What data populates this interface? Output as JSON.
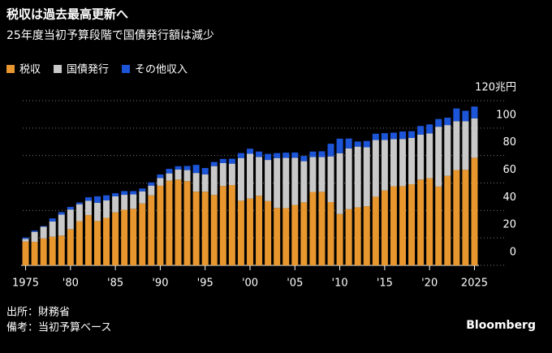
{
  "chart_data": {
    "type": "stacked-bar",
    "title": "税収は過去最高更新へ",
    "subtitle": "25年度当初予算段階で国債発行額は減少",
    "x": [
      1975,
      1976,
      1977,
      1978,
      1979,
      1980,
      1981,
      1982,
      1983,
      1984,
      1985,
      1986,
      1987,
      1988,
      1989,
      1990,
      1991,
      1992,
      1993,
      1994,
      1995,
      1996,
      1997,
      1998,
      1999,
      2000,
      2001,
      2002,
      2003,
      2004,
      2005,
      2006,
      2007,
      2008,
      2009,
      2010,
      2011,
      2012,
      2013,
      2014,
      2015,
      2016,
      2017,
      2018,
      2019,
      2020,
      2021,
      2022,
      2023,
      2024,
      2025
    ],
    "series": [
      {
        "name": "税収",
        "color": "#e8972f",
        "values": [
          17.3,
          17.1,
          19.6,
          20.9,
          21.7,
          26.4,
          32.2,
          36.6,
          32.3,
          34.6,
          38.6,
          40.5,
          41.2,
          45.1,
          51.0,
          58.0,
          61.7,
          62.5,
          61.3,
          53.7,
          53.7,
          51.3,
          57.8,
          58.5,
          47.1,
          48.7,
          50.7,
          46.8,
          41.8,
          41.7,
          44.0,
          45.9,
          53.5,
          53.6,
          46.1,
          37.4,
          40.9,
          42.3,
          43.1,
          50.0,
          54.5,
          57.6,
          57.7,
          59.1,
          62.5,
          63.5,
          57.4,
          65.2,
          69.4,
          69.6,
          78.4
        ]
      },
      {
        "name": "国債発行",
        "color": "#c9c9c9",
        "values": [
          2.0,
          7.3,
          8.5,
          11.1,
          15.3,
          14.3,
          12.3,
          10.4,
          13.3,
          12.7,
          11.7,
          10.9,
          10.5,
          8.8,
          7.1,
          5.6,
          5.3,
          7.3,
          8.1,
          13.6,
          12.6,
          21.0,
          16.7,
          15.6,
          31.1,
          32.6,
          28.3,
          30.0,
          36.4,
          36.6,
          34.4,
          30.0,
          25.4,
          25.3,
          33.3,
          44.3,
          44.3,
          44.2,
          42.9,
          41.3,
          36.9,
          34.4,
          34.4,
          33.7,
          32.7,
          32.6,
          43.6,
          37.0,
          35.6,
          35.4,
          28.7
        ]
      },
      {
        "name": "その他収入",
        "color": "#1c55d8",
        "values": [
          1.0,
          0.9,
          0.5,
          2.2,
          1.8,
          1.9,
          1.3,
          2.6,
          4.7,
          3.7,
          2.2,
          2.7,
          2.4,
          2.1,
          2.3,
          2.6,
          3.3,
          2.4,
          3.0,
          5.9,
          4.6,
          3.0,
          3.0,
          3.6,
          3.6,
          3.7,
          3.9,
          4.4,
          3.6,
          3.8,
          3.8,
          3.8,
          4.0,
          4.2,
          9.2,
          10.6,
          7.2,
          3.7,
          4.6,
          4.6,
          4.9,
          4.7,
          5.4,
          4.9,
          6.3,
          6.6,
          5.6,
          5.4,
          9.3,
          7.6,
          8.6
        ]
      }
    ],
    "xlim": [
      1974.5,
      2025.5
    ],
    "xticks": [
      {
        "value": 1975,
        "label": "1975"
      },
      {
        "value": 1980,
        "label": "'80"
      },
      {
        "value": 1985,
        "label": "'85"
      },
      {
        "value": 1990,
        "label": "'90"
      },
      {
        "value": 1995,
        "label": "'95"
      },
      {
        "value": 2000,
        "label": "'00"
      },
      {
        "value": 2005,
        "label": "'05"
      },
      {
        "value": 2010,
        "label": "'10"
      },
      {
        "value": 2015,
        "label": "'15"
      },
      {
        "value": 2020,
        "label": "'20"
      },
      {
        "value": 2025,
        "label": "2025"
      }
    ],
    "ylim": [
      0,
      120
    ],
    "yticks": [
      0,
      20,
      40,
      60,
      80,
      100,
      {
        "value": 120,
        "label": "120兆円"
      }
    ],
    "grid": true,
    "source": [
      "出所：財務省",
      "備考：当初予算ベース"
    ],
    "brand": "Bloomberg"
  }
}
